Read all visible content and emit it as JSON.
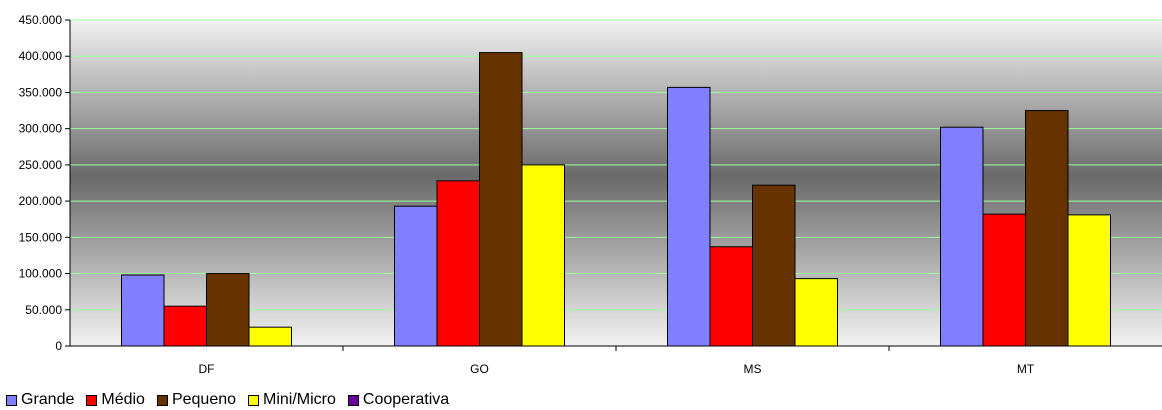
{
  "chart_data": {
    "type": "bar",
    "categories": [
      "DF",
      "GO",
      "MS",
      "MT"
    ],
    "series": [
      {
        "name": "Grande",
        "color": "#8080FF",
        "values": [
          98000,
          193000,
          357000,
          302000
        ]
      },
      {
        "name": "Médio",
        "color": "#FF0000",
        "values": [
          55000,
          228000,
          137000,
          182000
        ]
      },
      {
        "name": "Pequeno",
        "color": "#663300",
        "values": [
          100000,
          405000,
          222000,
          325000
        ]
      },
      {
        "name": "Mini/Micro",
        "color": "#FFFF00",
        "values": [
          26000,
          250000,
          93000,
          181000
        ]
      },
      {
        "name": "Cooperativa",
        "color": "#660099",
        "values": [
          0,
          0,
          0,
          0
        ]
      }
    ],
    "ylim": [
      0,
      450000
    ],
    "yticks": [
      "0",
      "50.000",
      "100.000",
      "150.000",
      "200.000",
      "250.000",
      "300.000",
      "350.000",
      "400.000",
      "450.000"
    ],
    "ytick_values": [
      0,
      50000,
      100000,
      150000,
      200000,
      250000,
      300000,
      350000,
      400000,
      450000
    ],
    "grid": true,
    "legend_position": "bottom-left",
    "title": "",
    "xlabel": "",
    "ylabel": ""
  }
}
